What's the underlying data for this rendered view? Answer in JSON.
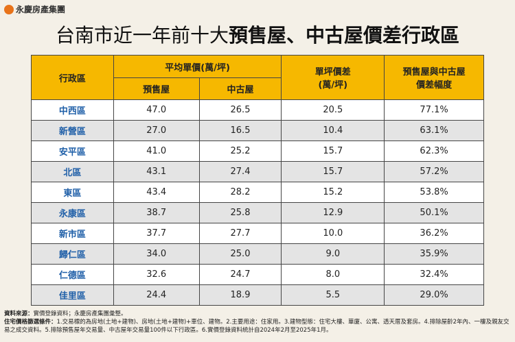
{
  "header": {
    "logo": "永慶房產集團",
    "title": {
      "plain": "台南市近一年前十大",
      "bold": "預售屋、中古屋價差行政區"
    }
  },
  "table": {
    "headers": {
      "district": "行政區",
      "avg_price": "平均單價(萬/坪)",
      "presale": "預售屋",
      "used": "中古屋",
      "diff": [
        "單坪價差",
        "(萬/坪)"
      ],
      "ratio": [
        "預售屋與中古屋",
        "價差幅度"
      ]
    },
    "rows": [
      [
        "中西區",
        "47.0",
        "26.5",
        "20.5",
        "77.1%"
      ],
      [
        "新營區",
        "27.0",
        "16.5",
        "10.4",
        "63.1%"
      ],
      [
        "安平區",
        "41.0",
        "25.2",
        "15.7",
        "62.3%"
      ],
      [
        "北區",
        "43.1",
        "27.4",
        "15.7",
        "57.2%"
      ],
      [
        "東區",
        "43.4",
        "28.2",
        "15.2",
        "53.8%"
      ],
      [
        "永康區",
        "38.7",
        "25.8",
        "12.9",
        "50.1%"
      ],
      [
        "新市區",
        "37.7",
        "27.7",
        "10.0",
        "36.2%"
      ],
      [
        "歸仁區",
        "34.0",
        "25.0",
        "9.0",
        "35.9%"
      ],
      [
        "仁德區",
        "32.6",
        "24.7",
        "8.0",
        "32.4%"
      ],
      [
        "佳里區",
        "24.4",
        "18.9",
        "5.5",
        "29.0%"
      ]
    ]
  },
  "footer": {
    "source_label": "資料來源：",
    "source": "實價登錄資料；永慶房產集團彙整。",
    "criteria_label": "住宅價格篩選條件：",
    "criteria": "1.交易標的為房地(土地+建物)、房地(土地+建物)+車位、建物。2.主要用途：住家用。3.建物型態：住宅大樓、華廈、公寓、透天厝及套房。4.排除屋齡2年內、一樓及親友交易之成交資料。5.排除預售屋年交易量、中古屋年交易量100件以下行政區。6.實價登錄資料統計自2024年2月至2025年1月。"
  }
}
